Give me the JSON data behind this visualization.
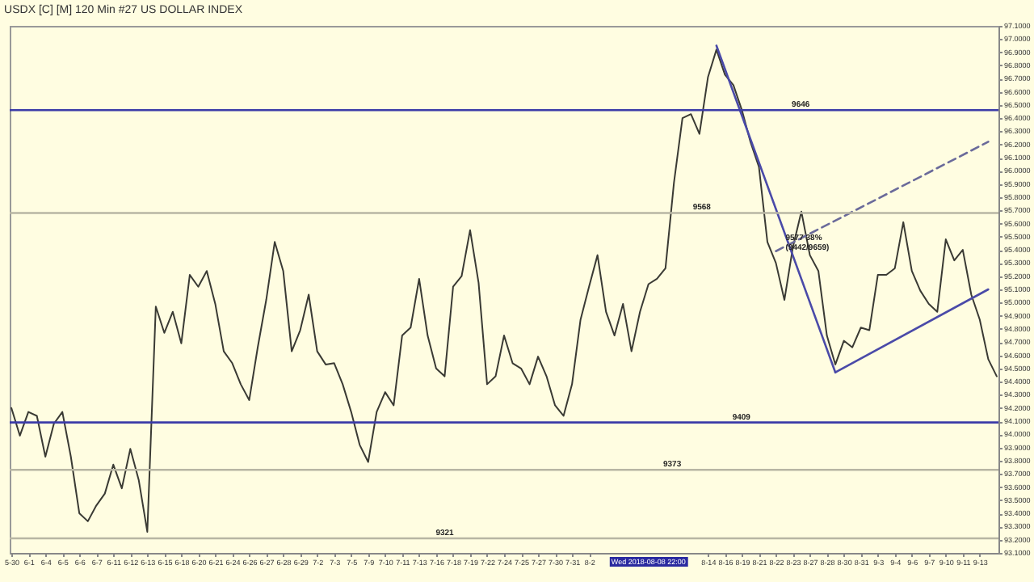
{
  "chart_data": {
    "type": "line",
    "title": "USDX [C] [M] 120 Min #27 US DOLLAR INDEX",
    "categories": [
      "5-30",
      null,
      "6-1",
      null,
      "6-4",
      null,
      "6-5",
      null,
      "6-6",
      null,
      "6-7",
      null,
      "6-11",
      null,
      "6-12",
      null,
      "6-13",
      null,
      "6-15",
      null,
      "6-18",
      null,
      "6-20",
      null,
      "6-21",
      null,
      "6-24",
      null,
      "6-26",
      null,
      "6-27",
      null,
      "6-28",
      null,
      "6-29",
      null,
      "7-2",
      null,
      "7-3",
      null,
      "7-5",
      null,
      "7-9",
      null,
      "7-10",
      null,
      "7-11",
      null,
      "7-13",
      null,
      "7-16",
      null,
      "7-18",
      null,
      "7-19",
      null,
      "7-22",
      null,
      "7-24",
      null,
      "7-25",
      null,
      "7-27",
      null,
      "7-30",
      null,
      "7-31",
      null,
      "8-2",
      null,
      null,
      null,
      null,
      null,
      null,
      null,
      null,
      null,
      null,
      null,
      null,
      null,
      "8-14",
      null,
      "8-16",
      null,
      "8-19",
      null,
      "8-21",
      null,
      "8-22",
      null,
      "8-23",
      null,
      "8-27",
      null,
      "8-28",
      null,
      "8-30",
      null,
      "8-31",
      null,
      "9-3",
      null,
      "9-4",
      null,
      "9-6",
      null,
      "9-7",
      null,
      "9-10",
      null,
      "9-11",
      null,
      "9-13",
      null,
      null
    ],
    "series": [
      {
        "color": "#3a3a34",
        "values": [
          94.2,
          93.99,
          94.17,
          94.14,
          93.83,
          94.08,
          94.17,
          93.83,
          93.4,
          93.34,
          93.46,
          93.55,
          93.77,
          93.59,
          93.89,
          93.65,
          93.26,
          94.97,
          94.77,
          94.93,
          94.69,
          95.21,
          95.12,
          95.24,
          94.99,
          94.63,
          94.54,
          94.38,
          94.26,
          94.66,
          95.02,
          95.46,
          95.24,
          94.63,
          94.79,
          95.06,
          94.63,
          94.53,
          94.54,
          94.38,
          94.17,
          93.92,
          93.79,
          94.17,
          94.32,
          94.22,
          94.75,
          94.81,
          95.18,
          94.75,
          94.5,
          94.44,
          95.12,
          95.2,
          95.55,
          95.15,
          94.38,
          94.44,
          94.75,
          94.54,
          94.5,
          94.38,
          94.59,
          94.44,
          94.22,
          94.14,
          94.38,
          94.87,
          95.12,
          95.36,
          94.93,
          94.75,
          94.99,
          94.63,
          94.93,
          95.14,
          95.18,
          95.26,
          95.91,
          96.4,
          96.43,
          96.28,
          96.71,
          96.92,
          96.73,
          96.65,
          96.46,
          96.22,
          96.03,
          95.46,
          95.3,
          95.02,
          95.42,
          95.69,
          95.36,
          95.24,
          94.75,
          94.53,
          94.71,
          94.66,
          94.81,
          94.79,
          95.21,
          95.21,
          95.26,
          95.61,
          95.24,
          95.09,
          94.99,
          94.93,
          95.48,
          95.32,
          95.4,
          95.06,
          94.87,
          94.57,
          94.44
        ]
      },
      {
        "type": "line",
        "color": "#4a4aa8",
        "values": [
          null,
          null,
          null,
          null,
          null,
          null,
          null,
          null,
          null,
          null,
          null,
          null,
          null,
          null,
          null,
          null,
          null,
          null,
          null,
          null,
          null,
          null,
          null,
          null,
          null,
          null,
          null,
          null,
          null,
          null,
          null,
          null,
          null,
          null,
          null,
          null,
          null,
          null,
          null,
          null,
          null,
          null,
          null,
          null,
          null,
          null,
          null,
          null,
          null,
          null,
          null,
          null,
          null,
          null,
          null,
          null,
          null,
          null,
          null,
          null,
          null,
          null,
          null,
          null,
          null,
          null,
          null,
          null,
          null,
          null,
          null,
          null,
          null,
          null,
          null,
          null,
          null,
          null,
          null,
          null,
          null,
          null,
          null,
          96.95,
          null,
          null,
          null,
          null,
          null,
          null,
          null,
          null,
          null,
          null,
          null,
          null,
          null,
          94.47,
          null,
          null,
          null,
          null,
          null,
          null,
          null,
          null,
          null,
          null,
          null,
          null,
          null,
          null,
          null,
          null,
          null,
          null,
          null
        ]
      },
      {
        "type": "line",
        "color": "#4a4aa8",
        "values": [
          null,
          null,
          null,
          null,
          null,
          null,
          null,
          null,
          null,
          null,
          null,
          null,
          null,
          null,
          null,
          null,
          null,
          null,
          null,
          null,
          null,
          null,
          null,
          null,
          null,
          null,
          null,
          null,
          null,
          null,
          null,
          null,
          null,
          null,
          null,
          null,
          null,
          null,
          null,
          null,
          null,
          null,
          null,
          null,
          null,
          null,
          null,
          null,
          null,
          null,
          null,
          null,
          null,
          null,
          null,
          null,
          null,
          null,
          null,
          null,
          null,
          null,
          null,
          null,
          null,
          null,
          null,
          null,
          null,
          null,
          null,
          null,
          null,
          null,
          null,
          null,
          null,
          null,
          null,
          null,
          null,
          null,
          null,
          null,
          null,
          null,
          null,
          null,
          null,
          null,
          null,
          null,
          null,
          null,
          null,
          null,
          null,
          94.47,
          null,
          null,
          null,
          null,
          null,
          null,
          null,
          null,
          null,
          null,
          null,
          null,
          null,
          null,
          null,
          null,
          null,
          95.1,
          null
        ]
      },
      {
        "type": "line",
        "color": "#6a6a9a",
        "line_style": "dashed",
        "values": [
          null,
          null,
          null,
          null,
          null,
          null,
          null,
          null,
          null,
          null,
          null,
          null,
          null,
          null,
          null,
          null,
          null,
          null,
          null,
          null,
          null,
          null,
          null,
          null,
          null,
          null,
          null,
          null,
          null,
          null,
          null,
          null,
          null,
          null,
          null,
          null,
          null,
          null,
          null,
          null,
          null,
          null,
          null,
          null,
          null,
          null,
          null,
          null,
          null,
          null,
          null,
          null,
          null,
          null,
          null,
          null,
          null,
          null,
          null,
          null,
          null,
          null,
          null,
          null,
          null,
          null,
          null,
          null,
          null,
          null,
          null,
          null,
          null,
          null,
          null,
          null,
          null,
          null,
          null,
          null,
          null,
          null,
          null,
          null,
          null,
          null,
          null,
          null,
          null,
          null,
          95.39,
          null,
          null,
          null,
          null,
          null,
          null,
          null,
          null,
          null,
          null,
          null,
          null,
          null,
          null,
          null,
          null,
          null,
          null,
          null,
          null,
          null,
          null,
          null,
          null,
          96.22,
          null
        ]
      }
    ],
    "ref_lines": [
      {
        "axis": "y",
        "value": 96.46,
        "label": "9646",
        "color": "#3c3ca8"
      },
      {
        "axis": "y",
        "value": 95.68,
        "label": "9568",
        "color": "#b8b6a4"
      },
      {
        "axis": "y",
        "value": 94.09,
        "label": "9409",
        "color": "#3c3ca8"
      },
      {
        "axis": "y",
        "value": 93.73,
        "label": "9373",
        "color": "#b8b6a4"
      },
      {
        "axis": "y",
        "value": 93.21,
        "label": "9321",
        "color": "#b8b6a4"
      }
    ],
    "annotations": [
      {
        "text": "9577 38%",
        "x": "8-22",
        "y": 95.39
      },
      {
        "text": "(9442/9659)",
        "x": "8-22",
        "y": 95.39
      },
      "Wed 2018-08-08 22:00"
    ],
    "ylim": [
      93.1,
      97.1
    ],
    "yticks": [
      {
        "value": 93.1,
        "label": "93.1000"
      },
      {
        "value": 93.2,
        "label": "93.2000"
      },
      {
        "value": 93.3,
        "label": "93.3000"
      },
      {
        "value": 93.4,
        "label": "93.4000"
      },
      {
        "value": 93.5,
        "label": "93.5000"
      },
      {
        "value": 93.6,
        "label": "93.6000"
      },
      {
        "value": 93.7,
        "label": "93.7000"
      },
      {
        "value": 93.8,
        "label": "93.8000"
      },
      {
        "value": 93.9,
        "label": "93.9000"
      },
      {
        "value": 94.0,
        "label": "94.0000"
      },
      {
        "value": 94.1,
        "label": "94.1000"
      },
      {
        "value": 94.2,
        "label": "94.2000"
      },
      {
        "value": 94.3,
        "label": "94.3000"
      },
      {
        "value": 94.4,
        "label": "94.4000"
      },
      {
        "value": 94.5,
        "label": "94.5000"
      },
      {
        "value": 94.6,
        "label": "94.6000"
      },
      {
        "value": 94.7,
        "label": "94.7000"
      },
      {
        "value": 94.8,
        "label": "94.8000"
      },
      {
        "value": 94.9,
        "label": "94.9000"
      },
      {
        "value": 95.0,
        "label": "95.0000"
      },
      {
        "value": 95.1,
        "label": "95.1000"
      },
      {
        "value": 95.2,
        "label": "95.2000"
      },
      {
        "value": 95.3,
        "label": "95.3000"
      },
      {
        "value": 95.4,
        "label": "95.4000"
      },
      {
        "value": 95.5,
        "label": "95.5000"
      },
      {
        "value": 95.6,
        "label": "95.6000"
      },
      {
        "value": 95.7,
        "label": "95.7000"
      },
      {
        "value": 95.8,
        "label": "95.8000"
      },
      {
        "value": 95.9,
        "label": "95.9000"
      },
      {
        "value": 96.0,
        "label": "96.0000"
      },
      {
        "value": 96.1,
        "label": "96.1000"
      },
      {
        "value": 96.2,
        "label": "96.2000"
      },
      {
        "value": 96.3,
        "label": "96.3000"
      },
      {
        "value": 96.4,
        "label": "96.4000"
      },
      {
        "value": 96.5,
        "label": "96.5000"
      },
      {
        "value": 96.6,
        "label": "96.6000"
      },
      {
        "value": 96.7,
        "label": "96.7000"
      },
      {
        "value": 96.8,
        "label": "96.8000"
      },
      {
        "value": 96.9,
        "label": "96.9000"
      },
      {
        "value": 97.0,
        "label": "97.0000"
      },
      {
        "value": 97.1,
        "label": "97.1000"
      }
    ]
  }
}
